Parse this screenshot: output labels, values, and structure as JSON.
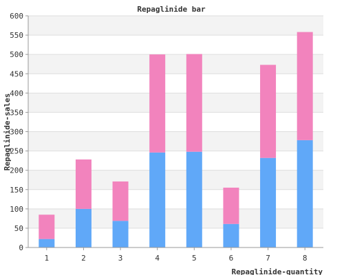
{
  "chart_data": {
    "type": "bar",
    "stacked": true,
    "title": "Repaglinide bar",
    "xlabel": "Repaglinide-quantity",
    "ylabel": "Repaglinide-sales",
    "categories": [
      "1",
      "2",
      "3",
      "4",
      "5",
      "6",
      "7",
      "8"
    ],
    "series": [
      {
        "color": "#60a8f8",
        "values": [
          22,
          100,
          69,
          246,
          248,
          61,
          232,
          278
        ]
      },
      {
        "color": "#f283bd",
        "values": [
          63,
          128,
          102,
          254,
          253,
          94,
          241,
          280
        ]
      }
    ],
    "ylim": [
      0,
      600
    ],
    "yticks": [
      0,
      50,
      100,
      150,
      200,
      250,
      300,
      350,
      400,
      450,
      500,
      550,
      600
    ],
    "grid": true,
    "band_color": "#f3f3f3",
    "grid_color": "#dddddd",
    "legend": "none"
  }
}
